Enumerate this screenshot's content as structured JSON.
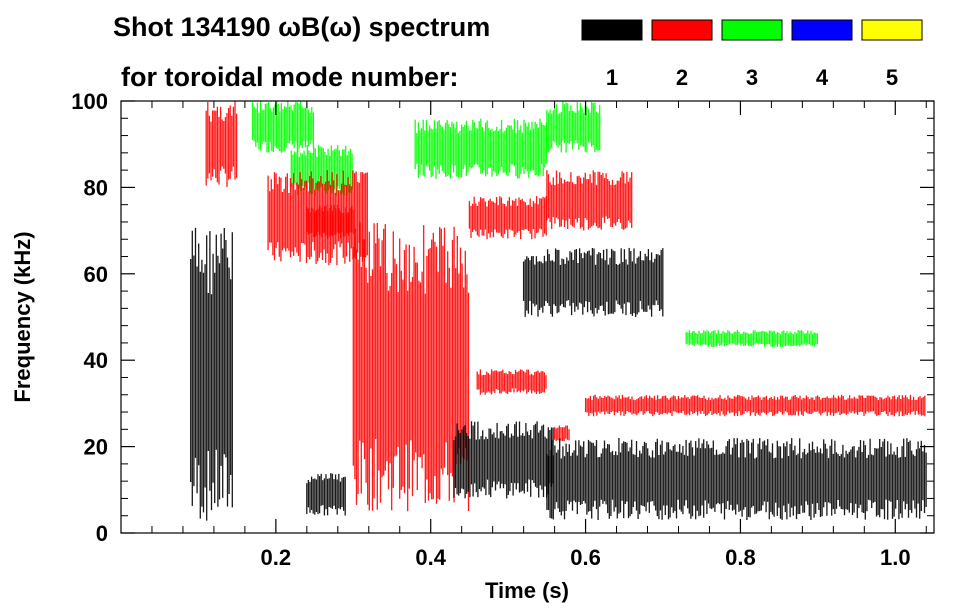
{
  "chart_data": {
    "type": "heatmap",
    "title_line1": "Shot 134190 ωB(ω) spectrum",
    "title_line2": "for toroidal mode number:",
    "xlabel": "Time (s)",
    "ylabel": "Frequency (kHz)",
    "xlim": [
      0.0,
      1.05
    ],
    "ylim": [
      0,
      100
    ],
    "x_ticks": [
      0.2,
      0.4,
      0.6,
      0.8,
      1.0
    ],
    "x_tick_labels": [
      "0.2",
      "0.4",
      "0.6",
      "0.8",
      "1.0"
    ],
    "y_ticks": [
      0,
      20,
      40,
      60,
      80,
      100
    ],
    "y_tick_labels": [
      "0",
      "20",
      "40",
      "60",
      "80",
      "100"
    ],
    "legend": {
      "placement": "top",
      "entries": [
        {
          "label": "1",
          "color": "#000000"
        },
        {
          "label": "2",
          "color": "#ff0000"
        },
        {
          "label": "3",
          "color": "#00ff00"
        },
        {
          "label": "4",
          "color": "#0000ff"
        },
        {
          "label": "5",
          "color": "#ffff00"
        }
      ]
    },
    "regions": [
      {
        "mode": "1",
        "t": [
          0.09,
          0.145
        ],
        "f": [
          2,
          72
        ]
      },
      {
        "mode": "2",
        "t": [
          0.11,
          0.15
        ],
        "f": [
          80,
          100
        ]
      },
      {
        "mode": "3",
        "t": [
          0.17,
          0.25
        ],
        "f": [
          88,
          100
        ]
      },
      {
        "mode": "3",
        "t": [
          0.22,
          0.3
        ],
        "f": [
          78,
          90
        ]
      },
      {
        "mode": "2",
        "t": [
          0.19,
          0.32
        ],
        "f": [
          62,
          84
        ]
      },
      {
        "mode": "2",
        "t": [
          0.24,
          0.3
        ],
        "f": [
          68,
          76
        ]
      },
      {
        "mode": "2",
        "t": [
          0.3,
          0.45
        ],
        "f": [
          5,
          72
        ]
      },
      {
        "mode": "3",
        "t": [
          0.38,
          0.55
        ],
        "f": [
          82,
          96
        ]
      },
      {
        "mode": "2",
        "t": [
          0.45,
          0.55
        ],
        "f": [
          68,
          78
        ]
      },
      {
        "mode": "3",
        "t": [
          0.55,
          0.62
        ],
        "f": [
          88,
          100
        ]
      },
      {
        "mode": "2",
        "t": [
          0.55,
          0.66
        ],
        "f": [
          70,
          84
        ]
      },
      {
        "mode": "1",
        "t": [
          0.52,
          0.7
        ],
        "f": [
          50,
          66
        ]
      },
      {
        "mode": "2",
        "t": [
          0.46,
          0.55
        ],
        "f": [
          32,
          38
        ]
      },
      {
        "mode": "2",
        "t": [
          0.56,
          0.58
        ],
        "f": [
          21,
          25
        ]
      },
      {
        "mode": "1",
        "t": [
          0.24,
          0.29
        ],
        "f": [
          4,
          14
        ]
      },
      {
        "mode": "1",
        "t": [
          0.43,
          0.56
        ],
        "f": [
          8,
          26
        ]
      },
      {
        "mode": "1",
        "t": [
          0.55,
          1.04
        ],
        "f": [
          3,
          22
        ]
      },
      {
        "mode": "2",
        "t": [
          0.6,
          1.04
        ],
        "f": [
          27,
          32
        ]
      },
      {
        "mode": "3",
        "t": [
          0.73,
          0.9
        ],
        "f": [
          43,
          47
        ]
      }
    ]
  }
}
